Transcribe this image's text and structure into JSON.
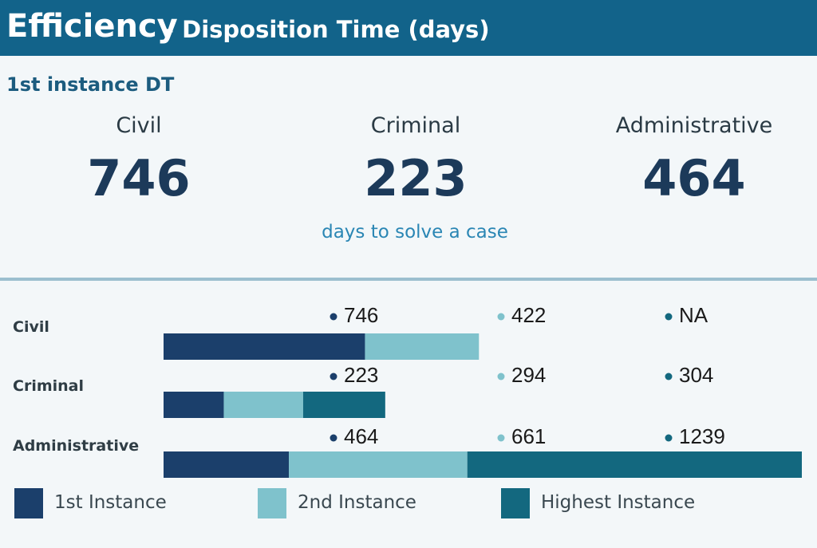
{
  "header": {
    "title_main": "Efficiency",
    "title_sub": "- Disposition Time (days)"
  },
  "section_label": "1st instance DT",
  "kpis": [
    {
      "category": "Civil",
      "value": "746"
    },
    {
      "category": "Criminal",
      "value": "223"
    },
    {
      "category": "Administrative",
      "value": "464"
    }
  ],
  "kpi_caption": "days to solve a case",
  "colors": {
    "header_bg": "#12638a",
    "first_instance": "#1b3f6b",
    "second_instance": "#7fc2cc",
    "highest_instance": "#13687f"
  },
  "chart_data": {
    "type": "bar",
    "orientation": "horizontal",
    "stacked": true,
    "categories": [
      "Civil",
      "Criminal",
      "Administrative"
    ],
    "series": [
      {
        "name": "1st Instance",
        "values": [
          746,
          223,
          464
        ],
        "labels": [
          "746",
          "223",
          "464"
        ],
        "color": "#1b3f6b"
      },
      {
        "name": "2nd Instance",
        "values": [
          422,
          294,
          661
        ],
        "labels": [
          "422",
          "294",
          "661"
        ],
        "color": "#7fc2cc"
      },
      {
        "name": "Highest Instance",
        "values": [
          null,
          304,
          1239
        ],
        "labels": [
          "NA",
          "304",
          "1239"
        ],
        "color": "#13687f"
      }
    ],
    "legend_position": "bottom",
    "grid": false
  }
}
